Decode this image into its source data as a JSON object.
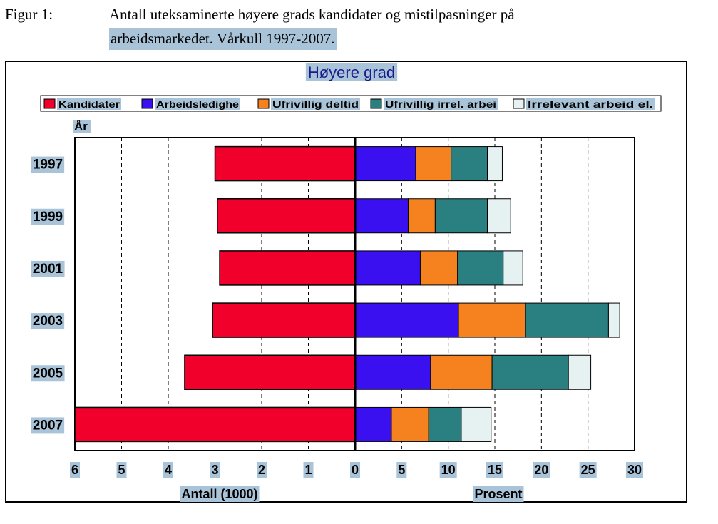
{
  "caption": {
    "figure_label": "Figur 1:",
    "line1": "Antall uteksaminerte høyere grads kandidater og mistilpasninger på",
    "line2": "arbeidsmarkedet. Vårkull 1997-2007."
  },
  "colors": {
    "kandidater": "#f0002a",
    "arbeidsledighet": "#3a10f0",
    "ufrivillig_deltid": "#f5821f",
    "ufrivillig_irrel": "#2a8080",
    "irrelevant": "#e6f2f2",
    "label_bg": "#a9c4d8"
  },
  "chart_data": {
    "type": "bar",
    "orientation": "horizontal",
    "stacked": true,
    "title": "Høyere grad",
    "y_axis_title": "År",
    "categories": [
      "1997",
      "1999",
      "2001",
      "2003",
      "2005",
      "2007"
    ],
    "left_axis": {
      "label": "Antall (1000)",
      "range": [
        0,
        6
      ],
      "direction": "reversed",
      "ticks": [
        "6",
        "5",
        "4",
        "3",
        "2",
        "1",
        "0"
      ]
    },
    "right_axis": {
      "label": "Prosent",
      "range": [
        0,
        30
      ],
      "ticks": [
        "0",
        "5",
        "10",
        "15",
        "20",
        "25",
        "30"
      ]
    },
    "legend": [
      "Kandidater",
      "Arbeidsledighe",
      "Ufrivillig deltid",
      "Ufrivillig irrel. arbei",
      "Irrelevant arbeid el."
    ],
    "legend_position": "top",
    "grid": "dashed vertical",
    "series": [
      {
        "name": "Kandidater",
        "axis": "left",
        "values": [
          3.0,
          2.95,
          2.9,
          3.05,
          3.65,
          6.0
        ]
      },
      {
        "name": "Arbeidsledighe",
        "axis": "right",
        "values": [
          6.5,
          5.7,
          7.0,
          11.1,
          8.1,
          3.9
        ]
      },
      {
        "name": "Ufrivillig deltid",
        "axis": "right",
        "values": [
          3.8,
          2.9,
          4.0,
          7.2,
          6.6,
          4.0
        ]
      },
      {
        "name": "Ufrivillig irrel. arbei",
        "axis": "right",
        "values": [
          3.9,
          5.6,
          4.9,
          8.9,
          8.2,
          3.5
        ]
      },
      {
        "name": "Irrelevant arbeid el.",
        "axis": "right",
        "values": [
          1.6,
          2.5,
          2.1,
          1.2,
          2.4,
          3.2
        ]
      }
    ]
  }
}
